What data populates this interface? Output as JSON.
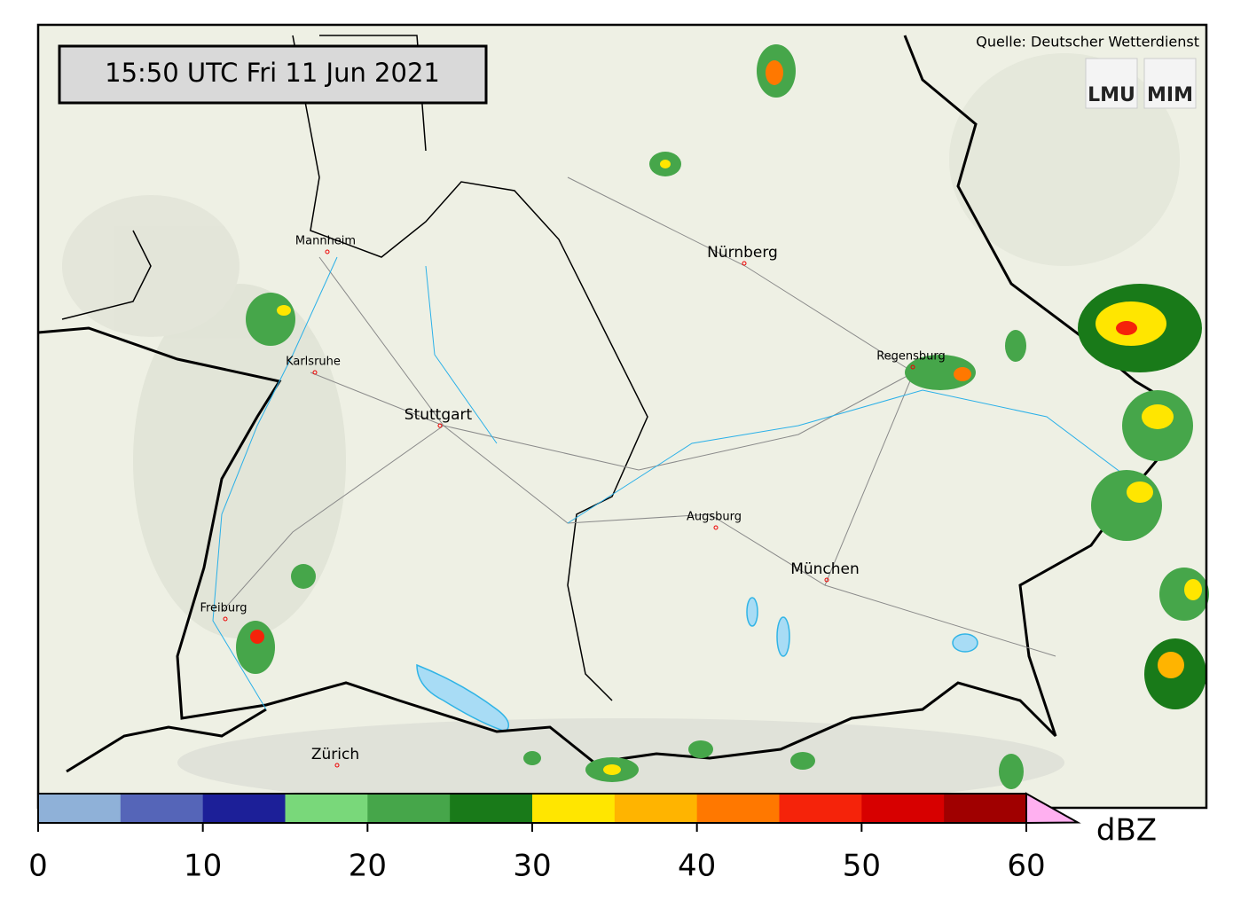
{
  "header": {
    "timestamp": "15:50 UTC  Fri 11 Jun 2021",
    "source": "Quelle: Deutscher Wetterdienst",
    "logos": [
      "LMU",
      "MIM"
    ]
  },
  "cities": [
    "Mannheim",
    "Nürnberg",
    "Karlsruhe",
    "Regensburg",
    "Stuttgart",
    "Augsburg",
    "München",
    "Freiburg",
    "Zürich"
  ],
  "colorbar": {
    "label": "dBZ",
    "lim": [
      0,
      60
    ],
    "ticks": [
      0,
      10,
      20,
      30,
      40,
      50,
      60
    ],
    "colors": [
      "#8fb1d8",
      "#5565b8",
      "#1c1f98",
      "#79d87a",
      "#46a64a",
      "#197a19",
      "#ffe600",
      "#ffb400",
      "#ff7800",
      "#f5230a",
      "#d70000",
      "#a00000"
    ],
    "extend_color": "#ffb0f0"
  }
}
